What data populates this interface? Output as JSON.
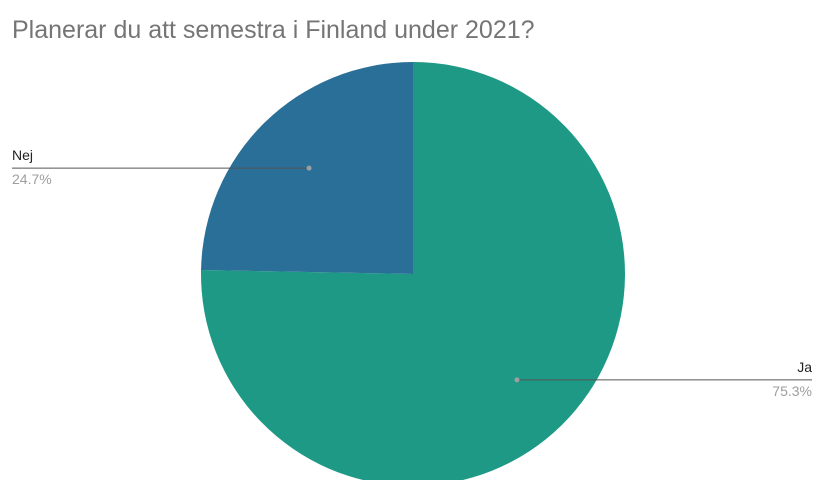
{
  "chart_data": {
    "type": "pie",
    "title": "Planerar du att semestra i Finland under 2021?",
    "slices": [
      {
        "name": "Ja",
        "value": 75.3,
        "label": "75.3%",
        "color": "#1e9986"
      },
      {
        "name": "Nej",
        "value": 24.7,
        "label": "24.7%",
        "color": "#2a6f97"
      }
    ],
    "start_angle_deg": 0,
    "direction": "clockwise",
    "legend": "none",
    "label_style": "outside-leader-lines"
  }
}
